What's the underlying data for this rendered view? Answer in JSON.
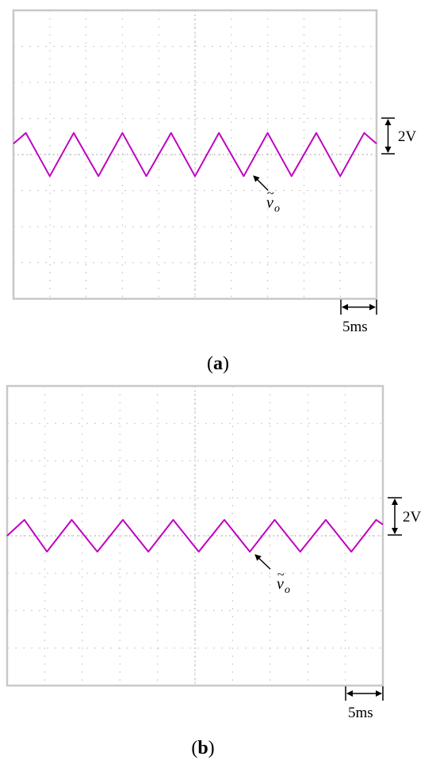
{
  "chart_data": [
    {
      "type": "line",
      "panel_label": "a",
      "scale_labels": {
        "voltage": "2V",
        "time": "5ms"
      },
      "signal_label": {
        "symbol": "v",
        "tilde": "~",
        "subscript": "o"
      },
      "grid": true,
      "grid_divisions": {
        "x": 10,
        "y": 8
      },
      "xlim": [
        0,
        50
      ],
      "ylim": [
        -8,
        8
      ],
      "series": [
        {
          "name": "",
          "color": "#c000c0",
          "x": [
            0,
            1.7,
            5.0,
            8.3,
            11.7,
            15.0,
            18.3,
            21.7,
            25.0,
            28.3,
            31.7,
            35.0,
            38.3,
            41.7,
            45.0,
            48.3,
            50
          ],
          "y": [
            0.6,
            1.2,
            -1.2,
            1.2,
            -1.2,
            1.2,
            -1.2,
            1.2,
            -1.2,
            1.2,
            -1.2,
            1.2,
            -1.2,
            1.2,
            -1.2,
            1.2,
            0.6
          ]
        }
      ]
    },
    {
      "type": "line",
      "panel_label": "b",
      "scale_labels": {
        "voltage": "2V",
        "time": "5ms"
      },
      "signal_label": {
        "symbol": "v",
        "tilde": "~",
        "subscript": "o"
      },
      "grid": true,
      "grid_divisions": {
        "x": 10,
        "y": 8
      },
      "xlim": [
        0,
        50
      ],
      "ylim": [
        -8,
        8
      ],
      "series": [
        {
          "name": "",
          "color": "#c000c0",
          "x": [
            0,
            2.3,
            5.3,
            8.6,
            12.0,
            15.4,
            18.8,
            22.1,
            25.5,
            28.9,
            32.3,
            35.6,
            39.0,
            42.4,
            45.8,
            49.1,
            50
          ],
          "y": [
            0.0,
            0.85,
            -0.85,
            0.85,
            -0.85,
            0.85,
            -0.85,
            0.85,
            -0.85,
            0.85,
            -0.85,
            0.85,
            -0.85,
            0.85,
            -0.85,
            0.85,
            0.6
          ]
        }
      ]
    }
  ]
}
